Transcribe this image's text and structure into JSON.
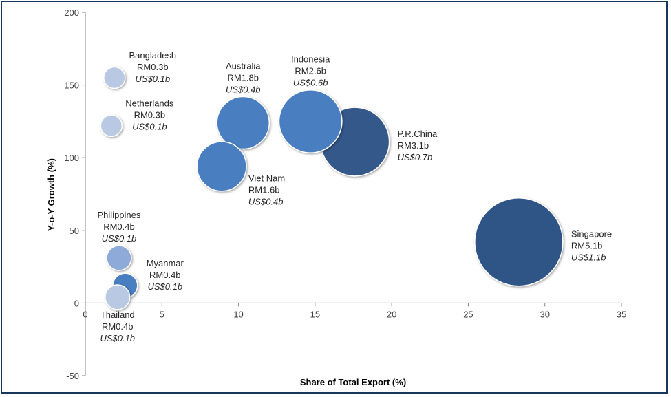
{
  "chart_data": {
    "type": "scatter",
    "title": "",
    "xlabel": "Share of Total Export (%)",
    "ylabel": "Y-o-Y Growth (%)",
    "xlim": [
      0,
      35
    ],
    "ylim": [
      -50,
      200
    ],
    "x_ticks": [
      "0",
      "5",
      "10",
      "15",
      "20",
      "25",
      "30",
      "35"
    ],
    "y_ticks": [
      "200",
      "150",
      "100",
      "50",
      "0",
      "-50"
    ],
    "grid": false,
    "legend": "none",
    "colors": {
      "frame": "#17375e",
      "light": "#b9c9e3",
      "medium": "#8eaad8",
      "mid": "#4a7ec1",
      "dark": "#35598a",
      "darkest": "#2f5486"
    },
    "points": [
      {
        "name": "Bangladesh",
        "x": 1.9,
        "y": 155,
        "rm_value": 0.3,
        "rm": "RM0.3b",
        "us": "US$0.1b",
        "shade": "light",
        "label_pos": "right-above"
      },
      {
        "name": "Netherlands",
        "x": 1.7,
        "y": 122,
        "rm_value": 0.3,
        "rm": "RM0.3b",
        "us": "US$0.1b",
        "shade": "light",
        "label_pos": "right-above"
      },
      {
        "name": "Australia",
        "x": 10.3,
        "y": 124,
        "rm_value": 1.8,
        "rm": "RM1.8b",
        "us": "US$0.4b",
        "shade": "mid",
        "label_pos": "above"
      },
      {
        "name": "Indonesia",
        "x": 14.7,
        "y": 125,
        "rm_value": 2.6,
        "rm": "RM2.6b",
        "us": "US$0.6b",
        "shade": "mid",
        "label_pos": "above"
      },
      {
        "name": "P.R.China",
        "x": 17.6,
        "y": 111,
        "rm_value": 3.1,
        "rm": "RM3.1b",
        "us": "US$0.7b",
        "shade": "dark",
        "label_pos": "right"
      },
      {
        "name": "Viet Nam",
        "x": 8.9,
        "y": 94,
        "rm_value": 1.6,
        "rm": "RM1.6b",
        "us": "US$0.4b",
        "shade": "mid",
        "label_pos": "below-right"
      },
      {
        "name": "Philippines",
        "x": 2.2,
        "y": 31,
        "rm_value": 0.4,
        "rm": "RM0.4b",
        "us": "US$0.1b",
        "shade": "medium",
        "label_pos": "above"
      },
      {
        "name": "Myanmar",
        "x": 2.6,
        "y": 12,
        "rm_value": 0.4,
        "rm": "RM0.4b",
        "us": "US$0.1b",
        "shade": "mid",
        "label_pos": "right-above"
      },
      {
        "name": "Thailand",
        "x": 2.1,
        "y": 4,
        "rm_value": 0.4,
        "rm": "RM0.4b",
        "us": "US$0.1b",
        "shade": "light",
        "label_pos": "below"
      },
      {
        "name": "Singapore",
        "x": 28.3,
        "y": 42,
        "rm_value": 5.1,
        "rm": "RM5.1b",
        "us": "US$1.1b",
        "shade": "darkest",
        "label_pos": "right"
      }
    ]
  }
}
